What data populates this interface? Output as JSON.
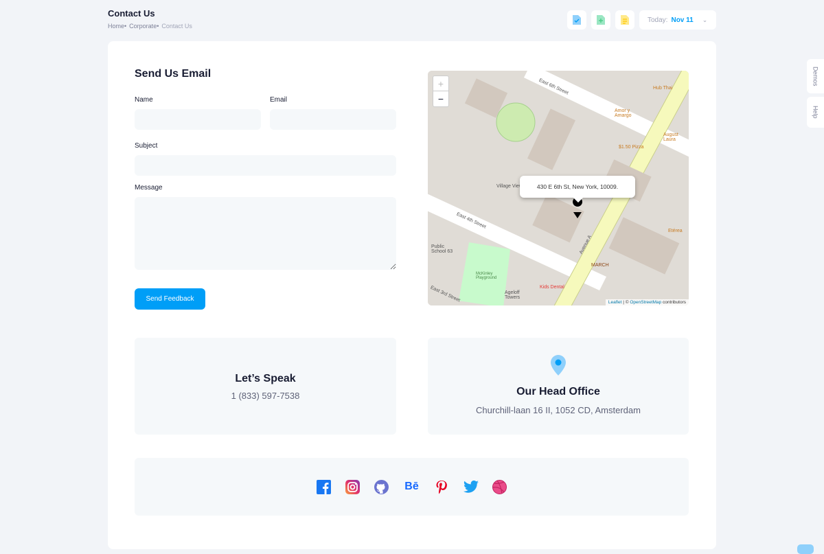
{
  "header": {
    "title": "Contact Us",
    "breadcrumb": [
      "Home",
      "Corporate",
      "Contact Us"
    ],
    "toolbar": {
      "icons": [
        "file-check-icon",
        "file-add-icon",
        "file-text-icon"
      ],
      "date_label": "Today:",
      "date_value": "Nov 11"
    }
  },
  "side_tabs": [
    "Demos",
    "Help"
  ],
  "form": {
    "title": "Send Us Email",
    "name_label": "Name",
    "email_label": "Email",
    "subject_label": "Subject",
    "message_label": "Message",
    "name_value": "",
    "email_value": "",
    "subject_value": "",
    "message_value": "",
    "submit_label": "Send Feedback"
  },
  "map": {
    "zoom_in": "+",
    "zoom_out": "−",
    "popup": "430 E 6th St, New York, 10009.",
    "labels": [
      "East 6th Street",
      "East 4th Street",
      "Avenue A",
      "Village View Houses",
      "Public School 63",
      "McKinley Playground",
      "Kids Dental",
      "Ageloff Towers",
      "MARCH",
      "Hub Thai",
      "Amor y Amargo",
      "$1.50 Pizza",
      "August Laura",
      "Etérea",
      "East 3rd Street"
    ],
    "attribution_leaflet": "Leaflet",
    "attribution_sep": " | © ",
    "attribution_osm": "OpenStreetMap",
    "attribution_rest": " contributors"
  },
  "phone_card": {
    "title": "Let’s Speak",
    "value": "1 (833) 597-7538"
  },
  "office_card": {
    "icon": "map-pin-icon",
    "title": "Our Head Office",
    "value": "Churchill-laan 16 II, 1052 CD, Amsterdam"
  },
  "social": [
    "facebook-icon",
    "instagram-icon",
    "github-icon",
    "behance-icon",
    "pinterest-icon",
    "twitter-icon",
    "dribbble-icon"
  ],
  "colors": {
    "primary": "#009ef7",
    "input_bg": "#f5f8fa"
  }
}
